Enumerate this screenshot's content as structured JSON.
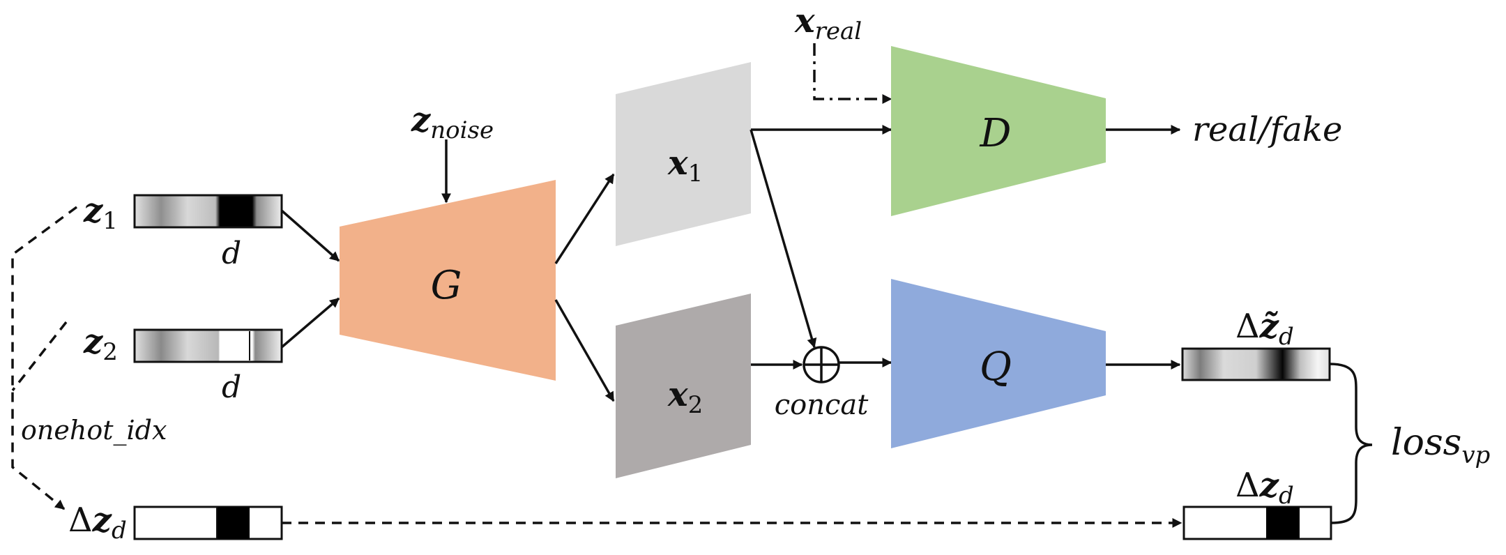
{
  "labels": {
    "z1": {
      "main": "z",
      "sub": "1"
    },
    "z2": {
      "main": "z",
      "sub": "2"
    },
    "dz": {
      "prefix": "Δ",
      "main": "z",
      "sub": "d"
    },
    "dz_tilde": {
      "prefix": "Δ",
      "main": "z̃",
      "sub": "d"
    },
    "dz_right": {
      "prefix": "Δ",
      "main": "z",
      "sub": "d"
    },
    "d_top": "d",
    "d_bottom": "d",
    "onehot": "onehot_idx",
    "z_noise": {
      "main": "z",
      "sub": "noise"
    },
    "x_real": {
      "main": "x",
      "sub": "real"
    },
    "x1": {
      "main": "x",
      "sub": "1"
    },
    "x2": {
      "main": "x",
      "sub": "2"
    },
    "generator": "G",
    "discriminator": "D",
    "q_network": "Q",
    "concat": "concat",
    "concat_symbol": "⊕",
    "output": "real/fake",
    "loss": {
      "main": "loss",
      "sub": "vp"
    }
  },
  "colors": {
    "generator": "#f2b18a",
    "discriminator": "#a9d18e",
    "q_network": "#8faadc",
    "x1": "#d9d9d9",
    "x2": "#aeaaaa",
    "stroke": "#111111"
  }
}
